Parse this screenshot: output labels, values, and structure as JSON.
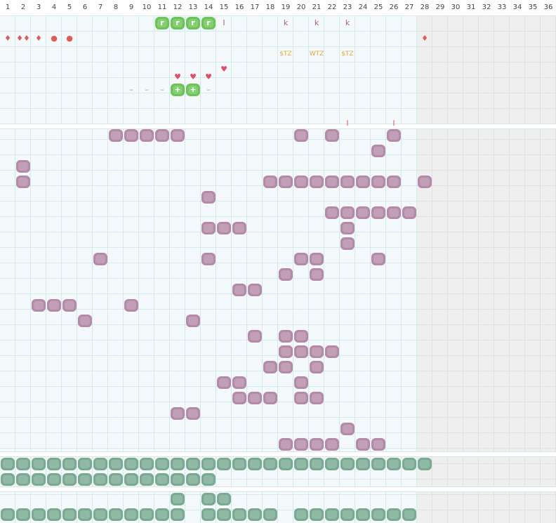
{
  "columns": [
    "1",
    "2",
    "3",
    "4",
    "5",
    "6",
    "7",
    "8",
    "9",
    "10",
    "11",
    "12",
    "13",
    "14",
    "15",
    "16",
    "17",
    "18",
    "19",
    "20",
    "21",
    "22",
    "23",
    "24",
    "25",
    "26",
    "27",
    "28",
    "29",
    "30",
    "31",
    "32",
    "33",
    "34",
    "35",
    "36"
  ],
  "colors": {
    "purple": "#b48aa8",
    "teal": "#7aaa92",
    "green": "#6cc456",
    "red": "#e05a5a",
    "orange": "#e08a3a",
    "gold": "#e3a93a",
    "mauve": "#b0607a",
    "pink": "#e0506a"
  },
  "top_rows": [
    {
      "row": 0,
      "items": [
        {
          "col": 11,
          "type": "green",
          "text": "r"
        },
        {
          "col": 12,
          "type": "green",
          "text": "r"
        },
        {
          "col": 13,
          "type": "green",
          "text": "r"
        },
        {
          "col": 14,
          "type": "green",
          "text": "r"
        },
        {
          "col": 15,
          "type": "glyph",
          "text": "I",
          "color": "#b0607a"
        },
        {
          "col": 19,
          "type": "glyph",
          "text": "k",
          "color": "#b0607a"
        },
        {
          "col": 21,
          "type": "glyph",
          "text": "k",
          "color": "#b0607a"
        },
        {
          "col": 23,
          "type": "glyph",
          "text": "k",
          "color": "#b0607a"
        }
      ]
    },
    {
      "row": 1,
      "items": [
        {
          "col": 1,
          "type": "glyph",
          "text": "♦",
          "color": "#e05a5a"
        },
        {
          "col": 2,
          "type": "glyph",
          "text": "♦♦",
          "color": "#e05a5a"
        },
        {
          "col": 3,
          "type": "glyph",
          "text": "♦",
          "color": "#e05a5a"
        },
        {
          "col": 4,
          "type": "glyph",
          "text": "●",
          "color": "#e05a5a"
        },
        {
          "col": 5,
          "type": "glyph",
          "text": "●",
          "color": "#e05a5a"
        },
        {
          "col": 28,
          "type": "glyph",
          "text": "♦",
          "color": "#e05a5a"
        }
      ]
    },
    {
      "row": 2,
      "items": [
        {
          "col": 19,
          "type": "text",
          "text": "$TZ"
        },
        {
          "col": 21,
          "type": "text",
          "text": "WTZ"
        },
        {
          "col": 23,
          "type": "text",
          "text": "$TZ"
        }
      ]
    },
    {
      "row": 3,
      "items": [
        {
          "col": 15,
          "type": "glyph",
          "text": "♥",
          "color": "#e0506a"
        }
      ]
    },
    {
      "row": 3.5,
      "items": [
        {
          "col": 12,
          "type": "glyph",
          "text": "♥",
          "color": "#e0506a"
        },
        {
          "col": 13,
          "type": "glyph",
          "text": "♥",
          "color": "#e0506a"
        },
        {
          "col": 14,
          "type": "glyph",
          "text": "♥",
          "color": "#e0506a"
        }
      ]
    },
    {
      "row": 4.3,
      "items": [
        {
          "col": 9,
          "type": "glyph",
          "text": "–",
          "color": "#e08a3a"
        },
        {
          "col": 10,
          "type": "glyph",
          "text": "–",
          "color": "#e08a3a"
        },
        {
          "col": 11,
          "type": "glyph",
          "text": "–",
          "color": "#e08a3a"
        },
        {
          "col": 12,
          "type": "green",
          "text": "+"
        },
        {
          "col": 13,
          "type": "green",
          "text": "+"
        },
        {
          "col": 14,
          "type": "glyph",
          "text": "–",
          "color": "#e08a3a"
        }
      ]
    },
    {
      "row": 6.5,
      "items": [
        {
          "col": 23,
          "type": "glyph",
          "text": "I",
          "color": "#e05a5a"
        },
        {
          "col": 26,
          "type": "glyph",
          "text": "I",
          "color": "#e05a5a"
        }
      ]
    }
  ],
  "purple_cells": [
    [
      0,
      [
        8,
        9,
        10,
        11,
        12,
        20,
        22,
        26
      ]
    ],
    [
      1,
      [
        25
      ]
    ],
    [
      2,
      [
        2
      ]
    ],
    [
      3,
      [
        2,
        18,
        19,
        20,
        21,
        22,
        23,
        24,
        25,
        26,
        28
      ]
    ],
    [
      4,
      [
        14
      ]
    ],
    [
      5,
      [
        22,
        23,
        24,
        25,
        26,
        27
      ]
    ],
    [
      6,
      [
        14,
        15,
        16,
        23
      ]
    ],
    [
      7,
      [
        23
      ]
    ],
    [
      8,
      [
        7,
        14,
        20,
        21,
        25
      ]
    ],
    [
      9,
      [
        19,
        21
      ]
    ],
    [
      10,
      [
        16,
        17
      ]
    ],
    [
      11,
      [
        3,
        4,
        5,
        9
      ]
    ],
    [
      12,
      [
        6,
        13
      ]
    ],
    [
      13,
      [
        17,
        19,
        20
      ]
    ],
    [
      14,
      [
        19,
        20,
        21,
        22
      ]
    ],
    [
      15,
      [
        18,
        19,
        21
      ]
    ],
    [
      16,
      [
        15,
        16,
        20
      ]
    ],
    [
      17,
      [
        16,
        17,
        18,
        20,
        21
      ]
    ],
    [
      18,
      [
        12,
        13
      ]
    ],
    [
      19,
      [
        23
      ]
    ],
    [
      20,
      [
        19,
        20,
        21,
        22,
        24,
        25
      ]
    ]
  ],
  "teal_rows": [
    [
      0,
      [
        1,
        2,
        3,
        4,
        5,
        6,
        7,
        8,
        9,
        10,
        11,
        12,
        13,
        14,
        15,
        16,
        17,
        18,
        19,
        20,
        21,
        22,
        23,
        24,
        25,
        26,
        27,
        28
      ]
    ],
    [
      1,
      [
        1,
        2,
        3,
        4,
        5,
        6,
        7,
        8,
        9,
        10,
        11,
        12,
        13,
        14
      ]
    ]
  ],
  "teal_rows2": [
    [
      0,
      [
        12,
        14,
        15
      ]
    ],
    [
      1,
      [
        1,
        2,
        3,
        4,
        5,
        6,
        7,
        8,
        9,
        10,
        11,
        12,
        14,
        15,
        16,
        17,
        18,
        20,
        21,
        22,
        23,
        24,
        25,
        26,
        27
      ]
    ]
  ]
}
